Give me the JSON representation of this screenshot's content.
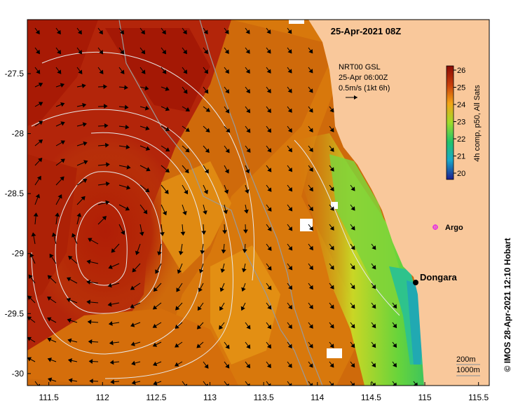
{
  "title": "25-Apr-2021 08Z",
  "current_note": {
    "line1": "NRT00 GSL",
    "line2": "25-Apr 06:00Z",
    "line3": "0.5m/s (1kt 6h)"
  },
  "colorbar": {
    "label": "4h comp, p50, All Sats",
    "ticks": [
      "26",
      "25",
      "24",
      "23",
      "22",
      "21",
      "20"
    ],
    "min": 20,
    "max": 26
  },
  "places": [
    {
      "name": "Dongara",
      "lon": 114.93,
      "lat": -29.25
    },
    {
      "name": "Argo",
      "lon": 115.12,
      "lat": -28.78
    }
  ],
  "axes": {
    "x_ticks": [
      "111.5",
      "112",
      "112.5",
      "113",
      "113.5",
      "114",
      "114.5",
      "115",
      "115.5"
    ],
    "y_ticks": [
      "-27.5",
      "-28",
      "-28.5",
      "-29",
      "-29.5",
      "-30"
    ],
    "lon_range": [
      111.3,
      115.6
    ],
    "lat_range": [
      -30.1,
      -27.05
    ]
  },
  "isobath_legend": [
    "200m",
    "1000m"
  ],
  "credit": "© IMOS 28-Apr-2021 12:10 Hobart",
  "colors": {
    "land": "#f9c89b",
    "warm": "#b41e05",
    "mid": "#d8780a",
    "cool": "#7fd43a",
    "coldest": "#2aa78c"
  }
}
